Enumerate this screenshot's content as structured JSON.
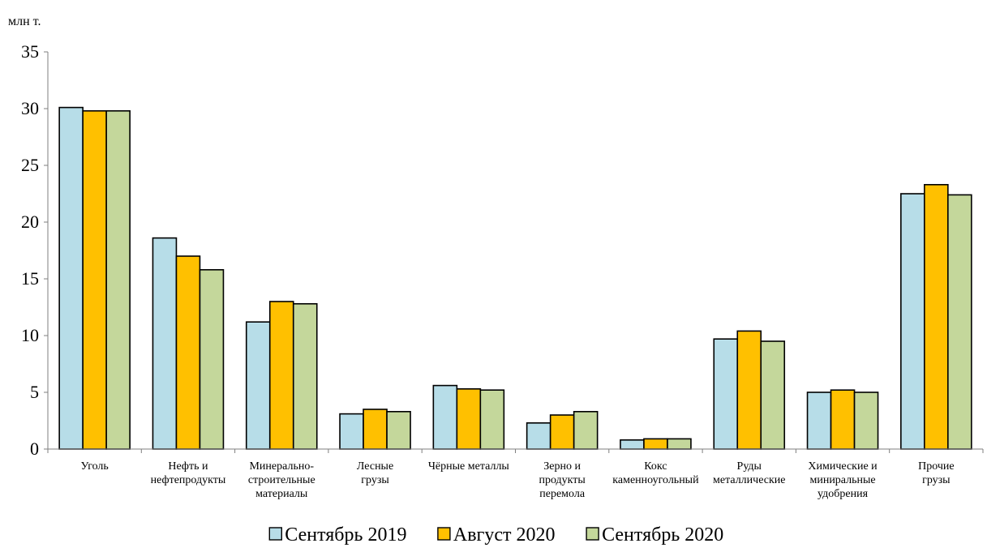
{
  "chart_data": {
    "type": "bar",
    "ylabel": "млн т.",
    "ylim": [
      0,
      35
    ],
    "yticks": [
      0,
      5,
      10,
      15,
      20,
      25,
      30,
      35
    ],
    "grid": false,
    "legend_position": "bottom",
    "categories": [
      [
        "Уголь"
      ],
      [
        "Нефть и",
        "нефтепродукты"
      ],
      [
        "Минерально-",
        "строительные",
        "материалы"
      ],
      [
        "Лесные",
        "грузы"
      ],
      [
        "Чёрные металлы"
      ],
      [
        "Зерно и",
        "продукты",
        "перемола"
      ],
      [
        "Кокс",
        "каменноугольный"
      ],
      [
        "Руды",
        "металлические"
      ],
      [
        "Химические и",
        "миниральные",
        "удобрения"
      ],
      [
        "Прочие",
        "грузы"
      ]
    ],
    "series": [
      {
        "name": "Сентябрь 2019",
        "color": "#b7dde8",
        "values": [
          30.1,
          18.6,
          11.2,
          3.1,
          5.6,
          2.3,
          0.8,
          9.7,
          5.0,
          22.5
        ]
      },
      {
        "name": "Август 2020",
        "color": "#ffc000",
        "values": [
          29.8,
          17.0,
          13.0,
          3.5,
          5.3,
          3.0,
          0.9,
          10.4,
          5.2,
          23.3
        ]
      },
      {
        "name": "Сентябрь 2020",
        "color": "#c4d79b",
        "values": [
          29.8,
          15.8,
          12.8,
          3.3,
          5.2,
          3.3,
          0.9,
          9.5,
          5.0,
          22.4
        ]
      }
    ]
  }
}
